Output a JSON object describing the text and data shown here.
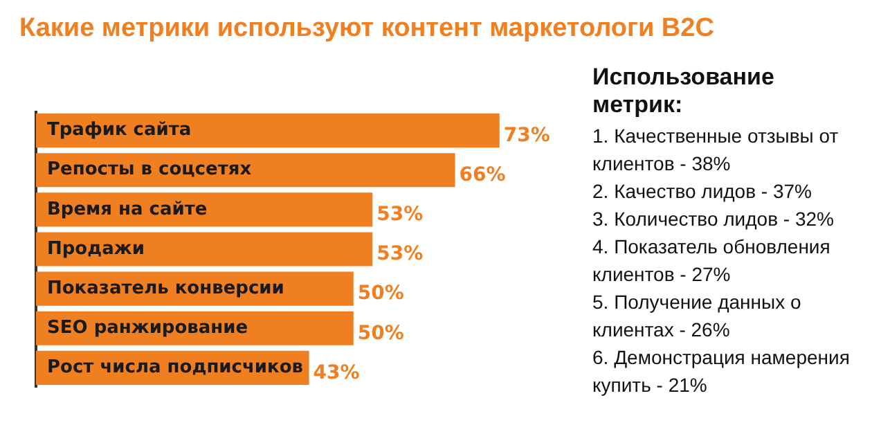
{
  "chart_data": {
    "type": "bar",
    "orientation": "horizontal",
    "title": "Какие метрики используют контент маркетологи B2C",
    "categories": [
      "Трафик сайта",
      "Репосты в соцсетях",
      "Время на сайте",
      "Продажи",
      "Показатель конверсии",
      "SEO ранжирование",
      "Рост числа подписчиков"
    ],
    "values": [
      73,
      66,
      53,
      53,
      50,
      50,
      43
    ],
    "value_labels": [
      "73%",
      "66%",
      "53%",
      "53%",
      "50%",
      "50%",
      "43%"
    ],
    "color": "#f07f22",
    "grid": false,
    "legend": false,
    "annotations": [
      "Использование метрик:",
      "1. Качественные отзывы от клиентов - 38%",
      "2. Качество лидов - 37%",
      "3. Количество лидов - 32%",
      "4. Показатель обновления клиентов - 27%",
      "5. Получение данных о клиентах - 26%",
      "6. Демонстрация намерения купить - 21%"
    ]
  }
}
